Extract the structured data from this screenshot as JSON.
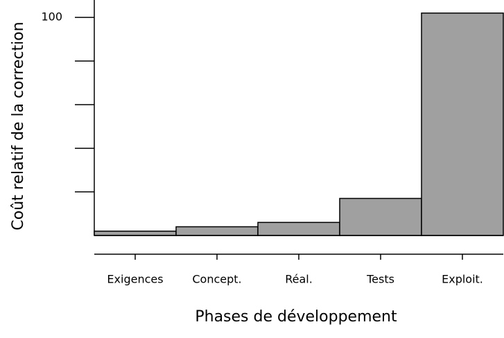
{
  "chart_data": {
    "type": "bar",
    "y_axis_label": "Coût relatif de la correction",
    "x_axis_label": "Phases de développement",
    "categories": [
      "Exigences",
      "Concept.",
      "Réal.",
      "Tests",
      "Exploit."
    ],
    "values": [
      2,
      4,
      6,
      17,
      102
    ],
    "color": "#a0a0a0",
    "ylim": [
      0,
      108
    ],
    "yticks": [
      100
    ],
    "yticks_minor": [
      20,
      40,
      60,
      80
    ]
  }
}
